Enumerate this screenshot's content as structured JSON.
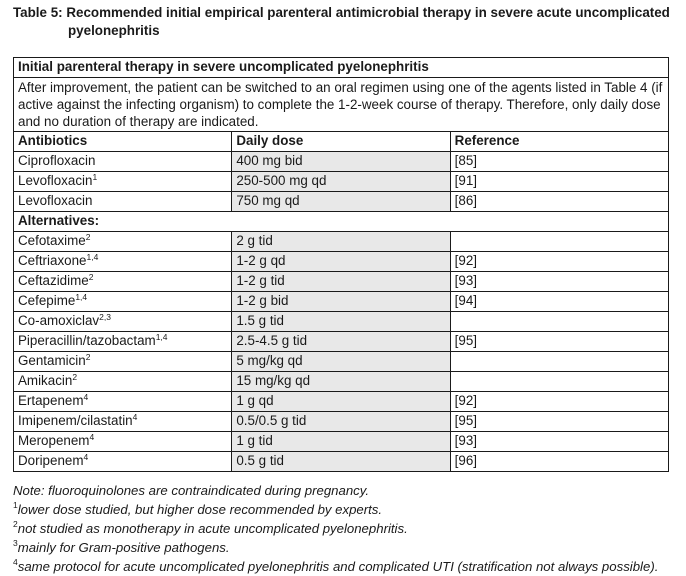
{
  "caption": {
    "label": "Table 5:",
    "line1": "Recommended initial empirical parenteral antimicrobial therapy in severe acute uncomplicated",
    "line2": "pyelonephritis"
  },
  "table": {
    "section_title": "Initial parenteral therapy in severe uncomplicated pyelonephritis",
    "intro": "After improvement, the patient can be switched to an oral regimen using one of the agents listed in Table 4 (if active against the infecting organism) to complete the 1-2-week course of therapy. Therefore, only daily dose and no duration of therapy are indicated.",
    "headers": {
      "antibiotics": "Antibiotics",
      "daily_dose": "Daily dose",
      "reference": "Reference"
    },
    "primary_rows": [
      {
        "name": "Ciprofloxacin",
        "sup": "",
        "dose": "400 mg bid",
        "ref": "[85]"
      },
      {
        "name": "Levofloxacin",
        "sup": "1",
        "dose": "250-500 mg qd",
        "ref": "[91]"
      },
      {
        "name": "Levofloxacin",
        "sup": "",
        "dose": "750 mg qd",
        "ref": "[86]"
      }
    ],
    "alternatives_label": "Alternatives:",
    "alternative_rows": [
      {
        "name": "Cefotaxime",
        "sup": "2",
        "dose": "2 g tid",
        "ref": ""
      },
      {
        "name": "Ceftriaxone",
        "sup": "1,4",
        "dose": "1-2 g qd",
        "ref": "[92]"
      },
      {
        "name": "Ceftazidime",
        "sup": "2",
        "dose": "1-2 g tid",
        "ref": "[93]"
      },
      {
        "name": "Cefepime",
        "sup": "1,4",
        "dose": "1-2 g bid",
        "ref": "[94]"
      },
      {
        "name": "Co-amoxiclav",
        "sup": "2,3",
        "dose": "1.5 g tid",
        "ref": ""
      },
      {
        "name": "Piperacillin/tazobactam",
        "sup": "1,4",
        "dose": "2.5-4.5 g tid",
        "ref": "[95]"
      },
      {
        "name": "Gentamicin",
        "sup": "2",
        "dose": "5 mg/kg qd",
        "ref": ""
      },
      {
        "name": "Amikacin",
        "sup": "2",
        "dose": "15 mg/kg qd",
        "ref": ""
      },
      {
        "name": "Ertapenem",
        "sup": "4",
        "dose": "1 g qd",
        "ref": "[92]"
      },
      {
        "name": "Imipenem/cilastatin",
        "sup": "4",
        "dose": "0.5/0.5 g tid",
        "ref": "[95]"
      },
      {
        "name": "Meropenem",
        "sup": "4",
        "dose": "1 g tid",
        "ref": "[93]"
      },
      {
        "name": "Doripenem",
        "sup": "4",
        "dose": "0.5 g tid",
        "ref": "[96]"
      }
    ]
  },
  "notes": [
    {
      "sup": "",
      "text": "Note: fluoroquinolones are contraindicated during pregnancy."
    },
    {
      "sup": "1",
      "text": "lower dose studied, but higher dose recommended by experts."
    },
    {
      "sup": "2",
      "text": "not studied as monotherapy in acute uncomplicated pyelonephritis."
    },
    {
      "sup": "3",
      "text": "mainly for Gram-positive pathogens."
    },
    {
      "sup": "4",
      "text": "same protocol for acute uncomplicated pyelonephritis and complicated UTI (stratification not always possible)."
    }
  ]
}
